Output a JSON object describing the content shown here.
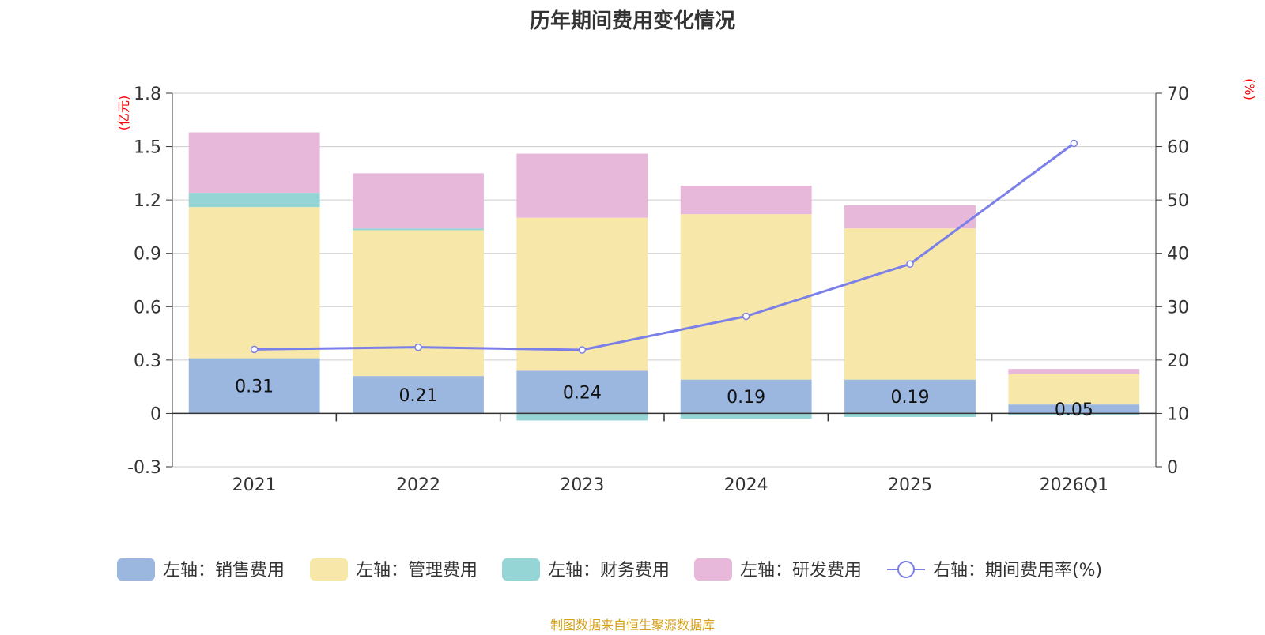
{
  "chart_data": {
    "type": "bar",
    "title": "历年期间费用变化情况",
    "source": "制图数据来自恒生聚源数据库",
    "categories": [
      "2021",
      "2022",
      "2023",
      "2024",
      "2025",
      "2026Q1"
    ],
    "left_axis": {
      "unit_label": "(亿元)",
      "ylim": [
        -0.3,
        1.8
      ],
      "ticks": [
        "-0.3",
        "0",
        "0.3",
        "0.6",
        "0.9",
        "1.2",
        "1.5",
        "1.8"
      ]
    },
    "right_axis": {
      "unit_label": "(%)",
      "ylim": [
        0,
        70
      ],
      "ticks": [
        "0",
        "10",
        "20",
        "30",
        "40",
        "50",
        "60",
        "70"
      ]
    },
    "grid": true,
    "legend_position": "bottom",
    "series": [
      {
        "name": "左轴：销售费用",
        "type": "bar",
        "color": "#9bb7e0",
        "values": [
          0.31,
          0.21,
          0.24,
          0.19,
          0.19,
          0.05
        ],
        "data_labels": [
          "0.31",
          "0.21",
          "0.24",
          "0.19",
          "0.19",
          "0.05"
        ]
      },
      {
        "name": "左轴：管理费用",
        "type": "bar",
        "color": "#f7e7a9",
        "values": [
          0.85,
          0.82,
          0.86,
          0.93,
          0.85,
          0.17
        ]
      },
      {
        "name": "左轴：财务费用",
        "type": "bar",
        "color": "#96d5d5",
        "values": [
          0.08,
          0.01,
          -0.04,
          -0.03,
          -0.02,
          -0.01
        ]
      },
      {
        "name": "左轴：研发费用",
        "type": "bar",
        "color": "#e8b8da",
        "values": [
          0.34,
          0.31,
          0.36,
          0.16,
          0.13,
          0.03
        ]
      },
      {
        "name": "右轴：期间费用率(%)",
        "type": "line",
        "axis": "right",
        "color": "#7b7fe8",
        "values": [
          22.0,
          22.4,
          21.9,
          28.2,
          38.0,
          60.6
        ]
      }
    ]
  }
}
